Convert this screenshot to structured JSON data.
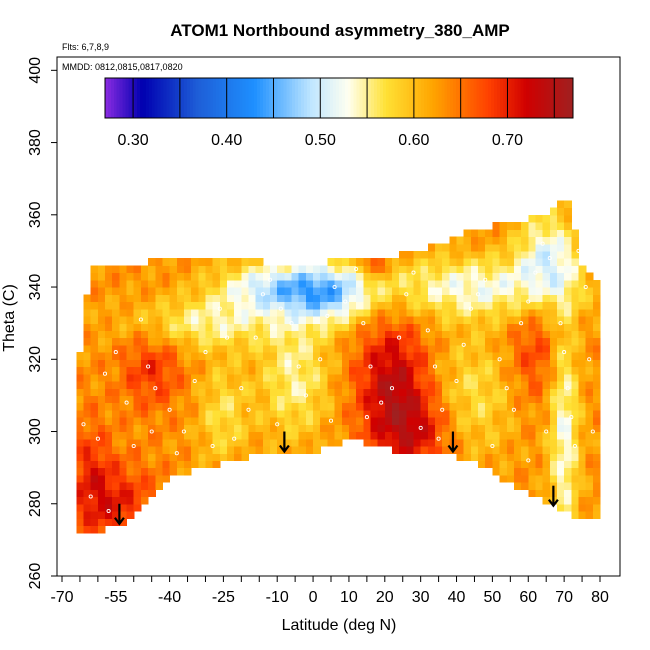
{
  "chart_data": {
    "type": "heatmap",
    "title": "ATOM1 Northbound asymmetry_380_AMP",
    "flights_label": "Flts: 6,7,8,9",
    "dates_label": "MMDD: 0812,0815,0817,0820",
    "xlabel": "Latitude (deg N)",
    "ylabel": "Theta (C)",
    "xlim": [
      -72,
      82
    ],
    "ylim": [
      260,
      402
    ],
    "x_ticks": [
      -70,
      -55,
      -40,
      -25,
      -10,
      0,
      10,
      20,
      30,
      40,
      50,
      60,
      70,
      80
    ],
    "x_tick_labels": [
      "-70",
      "-55",
      "-40",
      "-25",
      "-10",
      "0",
      "10",
      "20",
      "30",
      "40",
      "50",
      "60",
      "70",
      "80"
    ],
    "x_minor_step": 5,
    "y_ticks": [
      260,
      280,
      300,
      320,
      340,
      360,
      380,
      400
    ],
    "y_tick_labels": [
      "260",
      "280",
      "300",
      "320",
      "340",
      "360",
      "380",
      "400"
    ],
    "colorbar": {
      "range": [
        0.27,
        0.77
      ],
      "boundaries": [
        0.3,
        0.35,
        0.4,
        0.45,
        0.5,
        0.55,
        0.6,
        0.65,
        0.7,
        0.75
      ],
      "tick_values": [
        0.3,
        0.4,
        0.5,
        0.6,
        0.7
      ],
      "tick_labels": [
        "0.30",
        "0.40",
        "0.50",
        "0.60",
        "0.70"
      ],
      "stops": [
        {
          "v": 0.27,
          "color": "#8a2be2"
        },
        {
          "v": 0.31,
          "color": "#0000b0"
        },
        {
          "v": 0.37,
          "color": "#1e5fd8"
        },
        {
          "v": 0.43,
          "color": "#1e90ff"
        },
        {
          "v": 0.49,
          "color": "#bfe6ff"
        },
        {
          "v": 0.53,
          "color": "#fffff0"
        },
        {
          "v": 0.57,
          "color": "#ffe135"
        },
        {
          "v": 0.62,
          "color": "#ffa500"
        },
        {
          "v": 0.68,
          "color": "#ff4000"
        },
        {
          "v": 0.72,
          "color": "#d00000"
        },
        {
          "v": 0.77,
          "color": "#a02020"
        }
      ]
    },
    "field": {
      "grid_step_lat": 2,
      "grid_step_theta": 2,
      "background_level": 0.63,
      "top_boundary": [
        [
          -66,
          312
        ],
        [
          -64,
          330
        ],
        [
          -62,
          345
        ],
        [
          -55,
          346
        ],
        [
          -45,
          347
        ],
        [
          -35,
          348
        ],
        [
          -25,
          348
        ],
        [
          -15,
          347
        ],
        [
          -5,
          346
        ],
        [
          5,
          347
        ],
        [
          15,
          348
        ],
        [
          25,
          349
        ],
        [
          35,
          352
        ],
        [
          45,
          356
        ],
        [
          55,
          358
        ],
        [
          65,
          360
        ],
        [
          70,
          366
        ],
        [
          72,
          363
        ],
        [
          74,
          348
        ],
        [
          76,
          344
        ],
        [
          80,
          342
        ]
      ],
      "bottom_boundary": [
        [
          -66,
          272
        ],
        [
          -60,
          272
        ],
        [
          -55,
          274
        ],
        [
          -50,
          276
        ],
        [
          -40,
          287
        ],
        [
          -30,
          290
        ],
        [
          -22,
          292
        ],
        [
          -15,
          294
        ],
        [
          -5,
          295
        ],
        [
          0,
          294
        ],
        [
          10,
          298
        ],
        [
          18,
          296
        ],
        [
          28,
          293
        ],
        [
          38,
          294
        ],
        [
          48,
          290
        ],
        [
          58,
          284
        ],
        [
          68,
          279
        ],
        [
          74,
          276
        ],
        [
          80,
          276
        ]
      ],
      "features": [
        {
          "lat": -10,
          "theta": 340,
          "sig_lat": 12,
          "sig_theta": 5,
          "amp": -0.13
        },
        {
          "lat": 5,
          "theta": 338,
          "sig_lat": 8,
          "sig_theta": 6,
          "amp": -0.11
        },
        {
          "lat": 45,
          "theta": 340,
          "sig_lat": 20,
          "sig_theta": 6,
          "amp": -0.1
        },
        {
          "lat": 65,
          "theta": 350,
          "sig_lat": 6,
          "sig_theta": 8,
          "amp": -0.1
        },
        {
          "lat": 70,
          "theta": 300,
          "sig_lat": 3,
          "sig_theta": 25,
          "amp": -0.1
        },
        {
          "lat": -30,
          "theta": 330,
          "sig_lat": 15,
          "sig_theta": 5,
          "amp": -0.08
        },
        {
          "lat": -5,
          "theta": 315,
          "sig_lat": 7,
          "sig_theta": 12,
          "amp": -0.08
        },
        {
          "lat": -25,
          "theta": 305,
          "sig_lat": 5,
          "sig_theta": 10,
          "amp": -0.06
        },
        {
          "lat": 45,
          "theta": 310,
          "sig_lat": 8,
          "sig_theta": 12,
          "amp": -0.06
        },
        {
          "lat": 22,
          "theta": 315,
          "sig_lat": 7,
          "sig_theta": 12,
          "amp": 0.1
        },
        {
          "lat": 28,
          "theta": 300,
          "sig_lat": 8,
          "sig_theta": 8,
          "amp": 0.08
        },
        {
          "lat": -45,
          "theta": 318,
          "sig_lat": 6,
          "sig_theta": 8,
          "amp": 0.06
        },
        {
          "lat": -55,
          "theta": 280,
          "sig_lat": 8,
          "sig_theta": 8,
          "amp": 0.07
        },
        {
          "lat": 17,
          "theta": 346,
          "sig_lat": 2,
          "sig_theta": 2,
          "amp": 0.1
        },
        {
          "lat": -62,
          "theta": 290,
          "sig_lat": 4,
          "sig_theta": 10,
          "amp": 0.05
        },
        {
          "lat": 62,
          "theta": 322,
          "sig_lat": 6,
          "sig_theta": 10,
          "amp": 0.05
        }
      ]
    },
    "arrows": [
      {
        "lat": -54,
        "theta": 280
      },
      {
        "lat": -8,
        "theta": 300
      },
      {
        "lat": 39,
        "theta": 300
      },
      {
        "lat": 67,
        "theta": 285
      }
    ],
    "observation_points": [
      [
        -64,
        302
      ],
      [
        -60,
        298
      ],
      [
        -58,
        316
      ],
      [
        -55,
        322
      ],
      [
        -52,
        308
      ],
      [
        -48,
        331
      ],
      [
        -46,
        318
      ],
      [
        -44,
        312
      ],
      [
        -40,
        306
      ],
      [
        -36,
        300
      ],
      [
        -33,
        314
      ],
      [
        -30,
        322
      ],
      [
        -26,
        334
      ],
      [
        -24,
        326
      ],
      [
        -20,
        312
      ],
      [
        -18,
        306
      ],
      [
        -16,
        326
      ],
      [
        -14,
        338
      ],
      [
        -12,
        342
      ],
      [
        -9,
        334
      ],
      [
        -6,
        330
      ],
      [
        -4,
        318
      ],
      [
        -2,
        310
      ],
      [
        2,
        320
      ],
      [
        4,
        332
      ],
      [
        6,
        340
      ],
      [
        9,
        336
      ],
      [
        12,
        345
      ],
      [
        14,
        330
      ],
      [
        16,
        318
      ],
      [
        19,
        308
      ],
      [
        22,
        312
      ],
      [
        24,
        326
      ],
      [
        26,
        338
      ],
      [
        28,
        344
      ],
      [
        32,
        328
      ],
      [
        34,
        318
      ],
      [
        36,
        306
      ],
      [
        40,
        314
      ],
      [
        42,
        324
      ],
      [
        44,
        334
      ],
      [
        46,
        338
      ],
      [
        48,
        342
      ],
      [
        52,
        320
      ],
      [
        54,
        312
      ],
      [
        56,
        306
      ],
      [
        58,
        330
      ],
      [
        60,
        336
      ],
      [
        62,
        344
      ],
      [
        64,
        352
      ],
      [
        66,
        348
      ],
      [
        69,
        330
      ],
      [
        70,
        322
      ],
      [
        71,
        312
      ],
      [
        72,
        304
      ],
      [
        73,
        296
      ],
      [
        74,
        350
      ],
      [
        76,
        340
      ],
      [
        77,
        320
      ],
      [
        78,
        300
      ],
      [
        -62,
        282
      ],
      [
        -57,
        278
      ],
      [
        -50,
        296
      ],
      [
        -45,
        300
      ],
      [
        -38,
        294
      ],
      [
        -28,
        296
      ],
      [
        -22,
        298
      ],
      [
        -10,
        302
      ],
      [
        5,
        303
      ],
      [
        15,
        304
      ],
      [
        30,
        301
      ],
      [
        35,
        298
      ],
      [
        50,
        296
      ],
      [
        60,
        292
      ],
      [
        65,
        300
      ]
    ]
  }
}
